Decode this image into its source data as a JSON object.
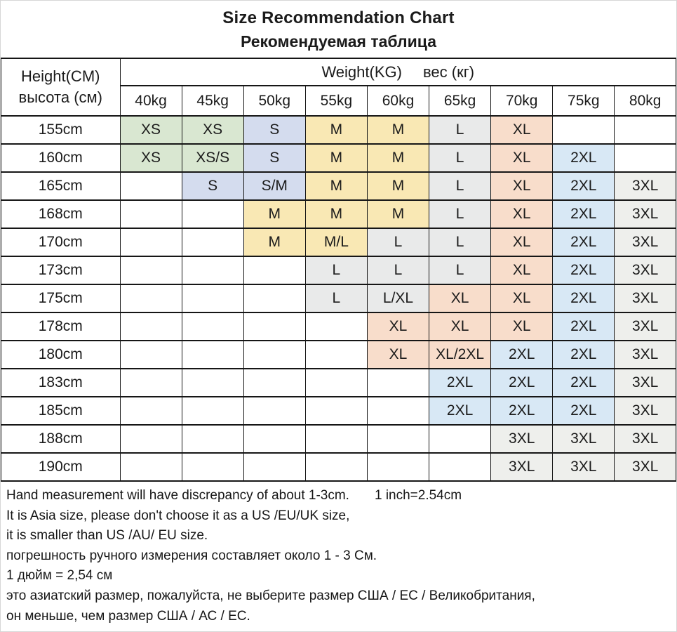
{
  "chart_data": {
    "type": "table",
    "title": "Size Recommendation Chart",
    "subtitle": "Рекомендуемая таблица",
    "row_axis": {
      "en": "Height(CM)",
      "ru": "высота (см)"
    },
    "col_axis": {
      "en": "Weight(KG)",
      "ru": "вес (кг)"
    },
    "columns": [
      "40kg",
      "45kg",
      "50kg",
      "55kg",
      "60kg",
      "65kg",
      "70kg",
      "75kg",
      "80kg"
    ],
    "rows": [
      "155cm",
      "160cm",
      "165cm",
      "168cm",
      "170cm",
      "173cm",
      "175cm",
      "178cm",
      "180cm",
      "183cm",
      "185cm",
      "188cm",
      "190cm"
    ],
    "matrix": [
      [
        "XS",
        "XS",
        "S",
        "M",
        "M",
        "L",
        "XL",
        "",
        ""
      ],
      [
        "XS",
        "XS/S",
        "S",
        "M",
        "M",
        "L",
        "XL",
        "2XL",
        ""
      ],
      [
        "",
        "S",
        "S/M",
        "M",
        "M",
        "L",
        "XL",
        "2XL",
        "3XL"
      ],
      [
        "",
        "",
        "M",
        "M",
        "M",
        "L",
        "XL",
        "2XL",
        "3XL"
      ],
      [
        "",
        "",
        "M",
        "M/L",
        "L",
        "L",
        "XL",
        "2XL",
        "3XL"
      ],
      [
        "",
        "",
        "",
        "L",
        "L",
        "L",
        "XL",
        "2XL",
        "3XL"
      ],
      [
        "",
        "",
        "",
        "L",
        "L/XL",
        "XL",
        "XL",
        "2XL",
        "3XL"
      ],
      [
        "",
        "",
        "",
        "",
        "XL",
        "XL",
        "XL",
        "2XL",
        "3XL"
      ],
      [
        "",
        "",
        "",
        "",
        "XL",
        "XL/2XL",
        "2XL",
        "2XL",
        "3XL"
      ],
      [
        "",
        "",
        "",
        "",
        "",
        "2XL",
        "2XL",
        "2XL",
        "3XL"
      ],
      [
        "",
        "",
        "",
        "",
        "",
        "2XL",
        "2XL",
        "2XL",
        "3XL"
      ],
      [
        "",
        "",
        "",
        "",
        "",
        "",
        "3XL",
        "3XL",
        "3XL"
      ],
      [
        "",
        "",
        "",
        "",
        "",
        "",
        "3XL",
        "3XL",
        "3XL"
      ]
    ],
    "size_colors": {
      "XS": "#d9e7d1",
      "S": "#d4dcee",
      "M": "#f9e8b4",
      "L": "#e9eaea",
      "XL": "#f8ddcb",
      "2XL": "#d8e8f5",
      "3XL": "#eeefec"
    },
    "empty_cell_color": "#ffffff",
    "grid": "black 1-2px borders, on"
  },
  "notes": {
    "measurement": "Hand measurement will have discrepancy of about 1-3cm.",
    "inch": "1 inch=2.54cm",
    "lines": [
      "It is Asia size, please don't choose it as a US /EU/UK size,",
      "it is smaller than US /AU/ EU size.",
      "погрешность ручного измерения составляет около 1 - 3 См.",
      "1 дюйм = 2,54 см",
      "это азиатский размер, пожалуйста, не выберите размер США / ЕС / Великобритания,",
      "он меньше, чем размер США / АС / ЕС."
    ]
  }
}
